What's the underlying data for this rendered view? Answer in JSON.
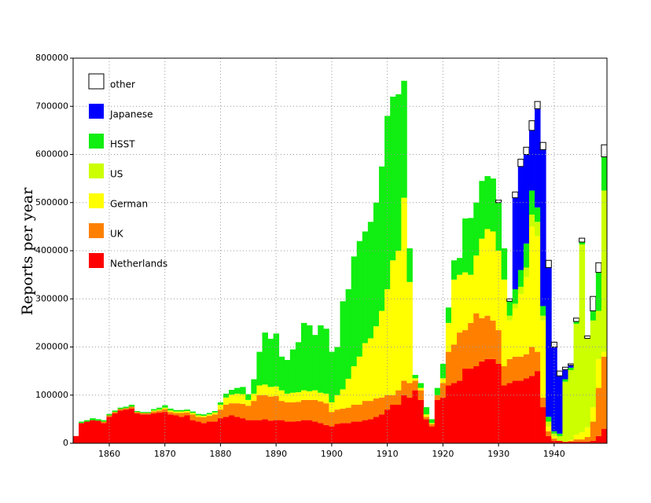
{
  "chart_data": {
    "type": "stacked-step-bar",
    "ylabel": "Reports per year",
    "x": [
      1854,
      1855,
      1856,
      1857,
      1858,
      1859,
      1860,
      1861,
      1862,
      1863,
      1864,
      1865,
      1866,
      1867,
      1868,
      1869,
      1870,
      1871,
      1872,
      1873,
      1874,
      1875,
      1876,
      1877,
      1878,
      1879,
      1880,
      1881,
      1882,
      1883,
      1884,
      1885,
      1886,
      1887,
      1888,
      1889,
      1890,
      1891,
      1892,
      1893,
      1894,
      1895,
      1896,
      1897,
      1898,
      1899,
      1900,
      1901,
      1902,
      1903,
      1904,
      1905,
      1906,
      1907,
      1908,
      1909,
      1910,
      1911,
      1912,
      1913,
      1914,
      1915,
      1916,
      1917,
      1918,
      1919,
      1920,
      1921,
      1922,
      1923,
      1924,
      1925,
      1926,
      1927,
      1928,
      1929,
      1930,
      1931,
      1932,
      1933,
      1934,
      1935,
      1936,
      1937,
      1938,
      1939,
      1940,
      1941,
      1942,
      1943,
      1944,
      1945,
      1946,
      1947,
      1948,
      1949
    ],
    "xlim": [
      1853.5,
      1949.5
    ],
    "xticks": [
      1860,
      1870,
      1880,
      1890,
      1900,
      1910,
      1920,
      1930,
      1940
    ],
    "ylim": [
      0,
      800000
    ],
    "yticks": [
      0,
      100000,
      200000,
      300000,
      400000,
      500000,
      600000,
      700000,
      800000
    ],
    "grid": true,
    "legend": "upper left",
    "series": [
      {
        "name": "Netherlands",
        "color": "#ff0000",
        "values": [
          15000,
          42000,
          45000,
          48000,
          47000,
          42000,
          55000,
          62000,
          68000,
          70000,
          72000,
          62000,
          60000,
          60000,
          62000,
          64000,
          65000,
          60000,
          58000,
          55000,
          58000,
          48000,
          45000,
          42000,
          45000,
          45000,
          52000,
          55000,
          58000,
          55000,
          52000,
          48000,
          48000,
          48000,
          50000,
          47000,
          48000,
          48000,
          45000,
          45000,
          46000,
          48000,
          48000,
          45000,
          42000,
          38000,
          35000,
          40000,
          42000,
          42000,
          45000,
          45000,
          48000,
          50000,
          55000,
          60000,
          70000,
          80000,
          80000,
          100000,
          95000,
          110000,
          90000,
          50000,
          35000,
          90000,
          95000,
          120000,
          125000,
          130000,
          155000,
          155000,
          160000,
          170000,
          175000,
          175000,
          165000,
          120000,
          125000,
          130000,
          130000,
          135000,
          140000,
          150000,
          75000,
          15000,
          5000,
          5000,
          3000,
          3000,
          3000,
          3000,
          3000,
          5000,
          15000,
          30000
        ]
      },
      {
        "name": "UK",
        "color": "#ff8000",
        "values": [
          0,
          0,
          0,
          0,
          0,
          3000,
          3000,
          3000,
          3000,
          3000,
          4000,
          3000,
          3000,
          3000,
          4000,
          4000,
          6000,
          5000,
          5000,
          8000,
          6000,
          12000,
          10000,
          12000,
          12000,
          15000,
          18000,
          25000,
          25000,
          28000,
          30000,
          30000,
          40000,
          52000,
          50000,
          50000,
          50000,
          40000,
          40000,
          40000,
          40000,
          42000,
          42000,
          45000,
          45000,
          45000,
          30000,
          30000,
          30000,
          32000,
          35000,
          35000,
          40000,
          38000,
          38000,
          35000,
          30000,
          20000,
          30000,
          30000,
          30000,
          20000,
          20000,
          5000,
          5000,
          10000,
          30000,
          70000,
          80000,
          100000,
          80000,
          95000,
          110000,
          90000,
          90000,
          80000,
          70000,
          40000,
          50000,
          50000,
          50000,
          50000,
          60000,
          40000,
          20000,
          10000,
          5000,
          0,
          0,
          2000,
          5000,
          5000,
          10000,
          40000,
          100000,
          150000
        ]
      },
      {
        "name": "German",
        "color": "#ffff00",
        "values": [
          0,
          0,
          0,
          0,
          0,
          0,
          0,
          0,
          0,
          0,
          0,
          0,
          0,
          0,
          2000,
          2000,
          3000,
          3000,
          3000,
          3000,
          3000,
          3000,
          3000,
          3000,
          3000,
          4000,
          10000,
          15000,
          18000,
          20000,
          20000,
          12000,
          15000,
          20000,
          22000,
          20000,
          20000,
          22000,
          18000,
          20000,
          20000,
          20000,
          18000,
          20000,
          18000,
          20000,
          20000,
          30000,
          40000,
          60000,
          80000,
          100000,
          120000,
          130000,
          150000,
          180000,
          220000,
          280000,
          290000,
          380000,
          210000,
          5000,
          5000,
          5000,
          2000,
          0,
          10000,
          60000,
          135000,
          120000,
          120000,
          100000,
          120000,
          165000,
          180000,
          185000,
          165000,
          180000,
          80000,
          100000,
          130000,
          160000,
          250000,
          240000,
          160000,
          10000,
          5000,
          0,
          0,
          2000,
          10000,
          15000,
          20000,
          30000,
          60000,
          10000
        ]
      },
      {
        "name": "US",
        "color": "#ccff00",
        "values": [
          0,
          0,
          0,
          0,
          0,
          0,
          0,
          0,
          0,
          0,
          0,
          0,
          0,
          0,
          0,
          0,
          0,
          0,
          0,
          0,
          0,
          0,
          0,
          0,
          0,
          0,
          0,
          0,
          0,
          0,
          0,
          0,
          0,
          0,
          0,
          0,
          0,
          0,
          0,
          0,
          0,
          0,
          0,
          0,
          0,
          0,
          0,
          0,
          0,
          0,
          0,
          0,
          0,
          0,
          0,
          0,
          0,
          0,
          0,
          0,
          0,
          0,
          0,
          0,
          0,
          0,
          0,
          0,
          0,
          0,
          0,
          0,
          0,
          0,
          0,
          0,
          0,
          0,
          10000,
          10000,
          15000,
          20000,
          25000,
          30000,
          10000,
          10000,
          5000,
          10000,
          125000,
          145000,
          230000,
          390000,
          185000,
          180000,
          100000,
          335000
        ]
      },
      {
        "name": "HSST",
        "color": "#11ee11",
        "values": [
          0,
          3000,
          3000,
          4000,
          3000,
          3000,
          3000,
          3000,
          3000,
          3000,
          4000,
          2000,
          2000,
          2000,
          3000,
          4000,
          5000,
          4000,
          3000,
          3000,
          3000,
          3000,
          3000,
          3000,
          3000,
          3000,
          5000,
          8000,
          10000,
          12000,
          15000,
          12000,
          30000,
          70000,
          108000,
          100000,
          110000,
          70000,
          70000,
          90000,
          104000,
          140000,
          137000,
          115000,
          140000,
          135000,
          105000,
          100000,
          183000,
          186000,
          228000,
          240000,
          232000,
          242000,
          257000,
          300000,
          360000,
          340000,
          325000,
          243000,
          70000,
          7000,
          10000,
          15000,
          8000,
          15000,
          30000,
          32000,
          40000,
          35000,
          112000,
          118000,
          110000,
          120000,
          110000,
          110000,
          100000,
          65000,
          30000,
          30000,
          35000,
          50000,
          50000,
          30000,
          20000,
          10000,
          5000,
          5000,
          5000,
          5000,
          5000,
          5000,
          0,
          20000,
          80000,
          70000
        ]
      },
      {
        "name": "Japanese",
        "color": "#0000ff",
        "values": [
          0,
          0,
          0,
          0,
          0,
          0,
          0,
          0,
          0,
          0,
          0,
          0,
          0,
          0,
          0,
          0,
          0,
          0,
          0,
          0,
          0,
          0,
          0,
          0,
          0,
          0,
          0,
          0,
          0,
          0,
          0,
          0,
          0,
          0,
          0,
          0,
          0,
          0,
          0,
          0,
          0,
          0,
          0,
          0,
          0,
          0,
          0,
          0,
          0,
          0,
          0,
          0,
          0,
          0,
          0,
          0,
          0,
          0,
          0,
          0,
          0,
          0,
          0,
          0,
          0,
          0,
          0,
          0,
          0,
          0,
          0,
          0,
          0,
          0,
          0,
          0,
          0,
          0,
          0,
          190000,
          215000,
          185000,
          125000,
          205000,
          325000,
          310000,
          175000,
          120000,
          20000,
          5000,
          0,
          0,
          0,
          0,
          0,
          0
        ]
      },
      {
        "name": "other",
        "color": "#ffffff",
        "values": [
          0,
          0,
          0,
          0,
          0,
          0,
          0,
          0,
          0,
          0,
          0,
          0,
          0,
          0,
          0,
          0,
          0,
          0,
          0,
          0,
          0,
          0,
          0,
          0,
          0,
          0,
          0,
          0,
          0,
          0,
          0,
          0,
          0,
          0,
          0,
          0,
          0,
          0,
          0,
          0,
          0,
          0,
          0,
          0,
          0,
          0,
          0,
          0,
          0,
          0,
          0,
          0,
          0,
          0,
          0,
          0,
          0,
          0,
          0,
          0,
          0,
          0,
          0,
          0,
          0,
          0,
          0,
          0,
          0,
          0,
          0,
          0,
          0,
          0,
          0,
          0,
          5000,
          0,
          5000,
          12000,
          15000,
          15000,
          20000,
          15000,
          15000,
          15000,
          10000,
          10000,
          5000,
          3000,
          7000,
          8000,
          5000,
          30000,
          20000,
          25000
        ]
      }
    ]
  }
}
